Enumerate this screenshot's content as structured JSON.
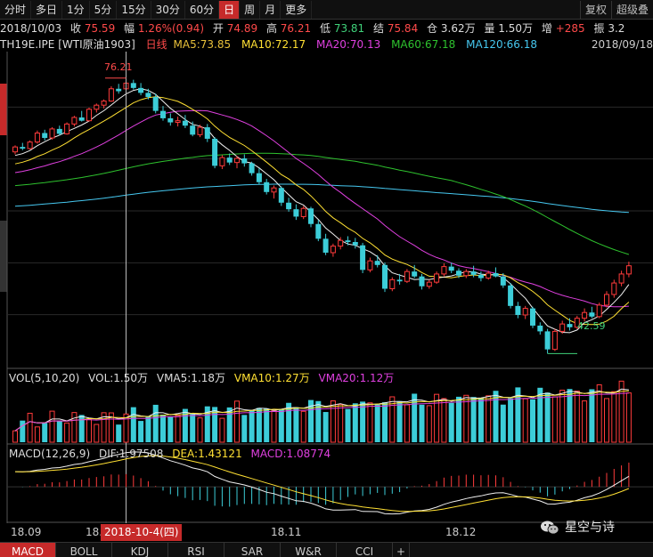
{
  "top_tabs": [
    "分时",
    "多日",
    "1分",
    "5分",
    "15分",
    "30分",
    "60分",
    "日",
    "周",
    "月",
    "更多"
  ],
  "active_tab": "日",
  "top_right_tabs": [
    "复权",
    "超级叠"
  ],
  "info": {
    "date": "2018/10/03",
    "close_label": "收",
    "close": "75.59",
    "change_label": "幅",
    "change": "1.26%(0.94)",
    "open_label": "开",
    "open": "74.89",
    "high_label": "高",
    "high": "76.21",
    "low_label": "低",
    "low": "73.81",
    "settle_label": "结",
    "settle": "75.84",
    "oi_label": "仓",
    "oi": "3.62万",
    "vol_label": "量",
    "vol": "1.50万",
    "inc_label": "增",
    "inc": "+285",
    "amp_label": "振",
    "amp": "3.2"
  },
  "ma_bar": {
    "symbol": "TH19E.IPE [WTI原油1903]",
    "line_type": "日线",
    "ma5": "MA5:73.85",
    "ma10": "MA10:72.17",
    "ma20": "MA20:70.13",
    "ma60": "MA60:67.18",
    "ma120": "MA120:66.18",
    "right_date": "2018/09/18"
  },
  "annotations": {
    "high": "76.21",
    "low": "42.59"
  },
  "volume_panel": {
    "title": "VOL(5,10,20)",
    "vol": "VOL:1.50万",
    "vma5": "VMA5:1.18万",
    "vma10": "VMA10:1.27万",
    "vma20": "VMA20:1.12万"
  },
  "macd_panel": {
    "title": "MACD(12,26,9)",
    "dif": "DIF:1.97508",
    "dea": "DEA:1.43121",
    "macd": "MACD:1.08774"
  },
  "x_axis": [
    "18.09",
    "18.",
    "18.11",
    "18.12"
  ],
  "date_tip": "2018-10-4(四)",
  "bottom_tabs": [
    "MACD",
    "BOLL",
    "KDJ",
    "RSI",
    "SAR",
    "W&R",
    "CCI"
  ],
  "watermark": "星空与诗",
  "colors": {
    "up": "#ff3b3b",
    "down": "#3ccdd8",
    "ma5": "#f0f0f0",
    "ma10": "#ffe033",
    "ma20": "#e040e0",
    "ma60": "#2ec22e",
    "ma120": "#46c8f0"
  },
  "chart_data": {
    "type": "candlestick",
    "candles_ohlc": [
      [
        67.2,
        68.0,
        66.9,
        67.8
      ],
      [
        67.8,
        68.3,
        67.4,
        67.6
      ],
      [
        67.6,
        68.6,
        67.5,
        68.4
      ],
      [
        68.4,
        69.8,
        68.2,
        69.5
      ],
      [
        69.5,
        69.9,
        68.6,
        68.9
      ],
      [
        68.9,
        70.2,
        68.7,
        70.0
      ],
      [
        70.0,
        70.4,
        69.2,
        69.4
      ],
      [
        69.4,
        70.8,
        69.3,
        70.6
      ],
      [
        70.6,
        71.6,
        70.3,
        71.4
      ],
      [
        71.4,
        72.2,
        70.9,
        71.0
      ],
      [
        71.0,
        72.6,
        70.9,
        72.4
      ],
      [
        72.4,
        73.1,
        72.0,
        72.9
      ],
      [
        72.9,
        73.6,
        72.5,
        73.4
      ],
      [
        73.4,
        75.2,
        73.3,
        74.9
      ],
      [
        74.9,
        75.5,
        74.3,
        74.6
      ],
      [
        74.89,
        76.21,
        73.81,
        75.59
      ],
      [
        75.6,
        76.0,
        74.8,
        75.0
      ],
      [
        75.0,
        75.6,
        74.1,
        74.4
      ],
      [
        74.4,
        74.9,
        73.6,
        73.9
      ],
      [
        73.9,
        74.3,
        71.9,
        72.2
      ],
      [
        72.2,
        72.8,
        71.0,
        71.3
      ],
      [
        71.3,
        71.9,
        70.4,
        70.8
      ],
      [
        70.8,
        71.5,
        70.3,
        71.0
      ],
      [
        71.0,
        71.7,
        70.1,
        70.4
      ],
      [
        70.4,
        70.9,
        69.1,
        69.3
      ],
      [
        69.3,
        70.5,
        69.0,
        70.2
      ],
      [
        70.2,
        70.6,
        68.4,
        68.8
      ],
      [
        68.8,
        69.0,
        65.2,
        65.5
      ],
      [
        65.5,
        66.8,
        65.1,
        66.5
      ],
      [
        66.5,
        67.0,
        65.6,
        65.9
      ],
      [
        65.9,
        66.7,
        65.2,
        66.4
      ],
      [
        66.4,
        66.9,
        65.4,
        65.8
      ],
      [
        65.8,
        66.0,
        64.3,
        64.6
      ],
      [
        64.6,
        65.2,
        63.2,
        63.5
      ],
      [
        63.5,
        63.9,
        62.0,
        62.3
      ],
      [
        62.3,
        63.1,
        61.5,
        62.8
      ],
      [
        62.8,
        63.0,
        60.6,
        61.0
      ],
      [
        61.0,
        61.6,
        59.9,
        60.2
      ],
      [
        60.2,
        60.8,
        58.9,
        59.3
      ],
      [
        59.3,
        60.6,
        59.0,
        60.3
      ],
      [
        60.3,
        60.5,
        58.0,
        58.4
      ],
      [
        58.4,
        58.9,
        56.3,
        56.6
      ],
      [
        56.6,
        57.2,
        54.6,
        54.9
      ],
      [
        54.9,
        56.0,
        54.4,
        55.7
      ],
      [
        55.7,
        56.8,
        55.3,
        56.4
      ],
      [
        56.4,
        56.9,
        55.8,
        56.2
      ],
      [
        56.2,
        56.7,
        55.4,
        55.8
      ],
      [
        55.8,
        56.1,
        52.4,
        52.8
      ],
      [
        52.8,
        54.3,
        52.5,
        53.9
      ],
      [
        53.9,
        54.6,
        53.1,
        53.4
      ],
      [
        53.4,
        53.7,
        50.1,
        50.5
      ],
      [
        50.5,
        51.9,
        50.2,
        51.6
      ],
      [
        51.6,
        52.3,
        51.0,
        51.4
      ],
      [
        51.4,
        52.9,
        51.2,
        52.6
      ],
      [
        52.6,
        53.4,
        51.8,
        52.0
      ],
      [
        52.0,
        52.3,
        50.4,
        50.8
      ],
      [
        50.8,
        51.6,
        50.5,
        51.3
      ],
      [
        51.3,
        52.6,
        51.1,
        52.3
      ],
      [
        52.3,
        53.6,
        52.0,
        53.2
      ],
      [
        53.2,
        53.7,
        52.4,
        52.7
      ],
      [
        52.7,
        53.0,
        51.8,
        52.1
      ],
      [
        52.1,
        52.9,
        51.8,
        52.6
      ],
      [
        52.6,
        53.3,
        51.9,
        52.2
      ],
      [
        52.2,
        52.6,
        51.4,
        51.8
      ],
      [
        51.8,
        52.7,
        51.6,
        52.4
      ],
      [
        52.4,
        53.1,
        51.9,
        52.0
      ],
      [
        52.0,
        52.4,
        50.6,
        50.9
      ],
      [
        50.9,
        51.2,
        48.1,
        48.4
      ],
      [
        48.4,
        48.9,
        46.9,
        47.3
      ],
      [
        47.3,
        48.4,
        46.8,
        48.1
      ],
      [
        48.1,
        48.3,
        45.7,
        46.0
      ],
      [
        46.0,
        46.4,
        44.9,
        45.3
      ],
      [
        45.3,
        45.6,
        42.59,
        43.1
      ],
      [
        43.1,
        45.6,
        42.9,
        45.3
      ],
      [
        45.3,
        46.6,
        45.0,
        46.2
      ],
      [
        46.2,
        46.9,
        45.4,
        45.8
      ],
      [
        45.8,
        47.2,
        45.6,
        46.9
      ],
      [
        46.9,
        48.1,
        46.5,
        47.6
      ],
      [
        47.6,
        48.3,
        46.9,
        47.1
      ],
      [
        47.1,
        48.8,
        46.9,
        48.5
      ],
      [
        48.5,
        50.2,
        48.2,
        49.8
      ],
      [
        49.8,
        51.6,
        49.4,
        51.2
      ],
      [
        51.2,
        52.7,
        50.8,
        52.3
      ],
      [
        52.3,
        53.8,
        51.9,
        53.3
      ]
    ],
    "y_range": [
      41,
      79
    ],
    "volume_range": [
      0,
      3.0
    ],
    "macd_range": [
      -3.2,
      2.4
    ]
  }
}
